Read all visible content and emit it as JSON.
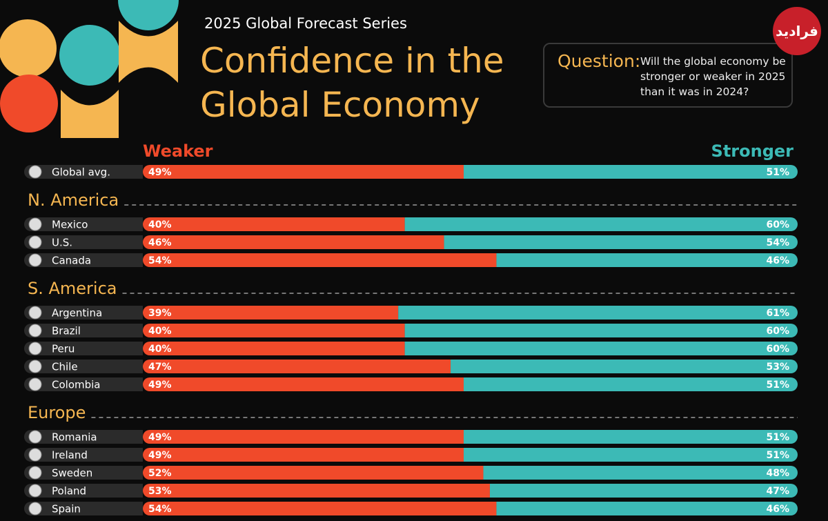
{
  "chart_data": {
    "type": "stacked_bar",
    "supertitle": "2025 Global Forecast Series",
    "title": "Confidence in the Global Economy",
    "question_label": "Question:",
    "question": "Will the global economy be stronger or weaker in 2025 than it was in 2024?",
    "logo": "فرادید",
    "categories": [
      "Global avg.",
      "Mexico",
      "U.S.",
      "Canada",
      "Argentina",
      "Brazil",
      "Peru",
      "Chile",
      "Colombia",
      "Romania",
      "Ireland",
      "Sweden",
      "Poland",
      "Spain"
    ],
    "regions": [
      null,
      "N. America",
      "N. America",
      "N. America",
      "S. America",
      "S. America",
      "S. America",
      "S. America",
      "S. America",
      "Europe",
      "Europe",
      "Europe",
      "Europe",
      "Europe"
    ],
    "series": [
      {
        "name": "Weaker",
        "color": "#f04a2a",
        "values": [
          49,
          40,
          46,
          54,
          39,
          40,
          40,
          47,
          49,
          49,
          49,
          52,
          53,
          54
        ],
        "value_labels": [
          "49%",
          "40%",
          "46%",
          "54%",
          "39%",
          "40%",
          "40%",
          "47%",
          "49%",
          "49%",
          "49%",
          "52%",
          "53%",
          "54%"
        ]
      },
      {
        "name": "Stronger",
        "color": "#3cbab6",
        "values": [
          51,
          60,
          54,
          46,
          61,
          60,
          60,
          53,
          51,
          51,
          51,
          48,
          47,
          46
        ],
        "value_labels": [
          "51%",
          "60%",
          "54%",
          "46%",
          "61%",
          "60%",
          "60%",
          "53%",
          "51%",
          "51%",
          "51%",
          "48%",
          "47%",
          "46%"
        ]
      }
    ]
  }
}
